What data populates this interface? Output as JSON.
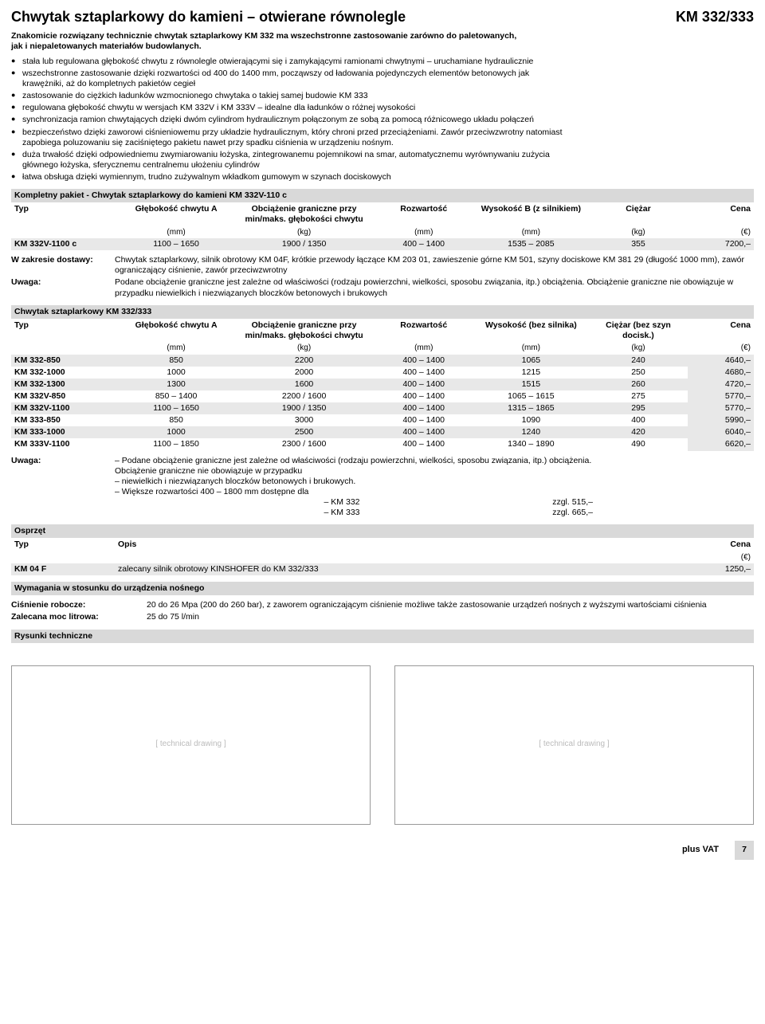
{
  "header": {
    "title": "Chwytak sztaplarkowy do kamieni – otwierane równolegle",
    "model": "KM 332/333"
  },
  "intro": "Znakomicie rozwiązany technicznie chwytak sztaplarkowy KM 332 ma wszechstronne zastosowanie zarówno do paletowanych, jak i niepaletowanych materiałów budowlanych.",
  "bullets": [
    "stała lub regulowana głębokość chwytu z równolegle otwierającymi się i zamykającymi ramionami chwytnymi – uruchamiane hydraulicznie",
    "wszechstronne zastosowanie dzięki rozwartości od 400 do 1400 mm, począwszy od ładowania pojedynczych elementów betonowych jak krawężniki, aż do kompletnych pakietów cegieł",
    "zastosowanie do ciężkich ładunków wzmocnionego chwytaka o takiej samej budowie KM 333",
    "regulowana głębokość chwytu w wersjach KM 332V i KM 333V – idealne dla ładunków o różnej wysokości",
    "synchronizacja ramion chwytających dzięki dwóm cylindrom hydraulicznym połączonym ze sobą za pomocą różnicowego układu połączeń",
    "bezpieczeństwo dzięki zaworowi ciśnieniowemu przy układzie hydraulicznym, który chroni przed przeciążeniami. Zawór przeciwzwrotny natomiast zapobiega poluzowaniu się zaciśniętego pakietu nawet przy spadku ciśnienia w urządzeniu nośnym.",
    "duża trwałość dzięki odpowiedniemu zwymiarowaniu łożyska, zintegrowanemu pojemnikowi na smar, automatycznemu wyrównywaniu zużycia głównego łożyska, sferycznemu centralnemu ułożeniu cylindrów",
    "łatwa obsługa dzięki wymiennym, trudno zużywalnym wkładkom gumowym w szynach dociskowych"
  ],
  "section1": {
    "title": "Kompletny pakiet - Chwytak sztaplarkowy do kamieni KM 332V-110 c",
    "headers": [
      "Typ",
      "Głębokość chwytu A",
      "Obciążenie graniczne przy min/maks. głębokości chwytu",
      "Rozwartość",
      "Wysokość B (z silnikiem)",
      "Ciężar",
      "Cena"
    ],
    "units": [
      "",
      "(mm)",
      "(kg)",
      "(mm)",
      "(mm)",
      "(kg)",
      "(€)"
    ],
    "rows": [
      [
        "KM 332V-1100 c",
        "1100 – 1650",
        "1900 / 1350",
        "400 – 1400",
        "1535 – 2085",
        "355",
        "7200,–"
      ]
    ]
  },
  "delivery": {
    "scope_label": "W zakresie dostawy:",
    "scope_text": "Chwytak sztaplarkowy, silnik obrotowy KM 04F, krótkie przewody łączące KM 203 01, zawieszenie górne KM 501, szyny dociskowe KM 381 29 (długość 1000 mm), zawór ograniczający ciśnienie, zawór przeciwzwrotny",
    "note_label": "Uwaga:",
    "note_text": "Podane obciążenie graniczne jest zależne od właściwości (rodzaju powierzchni, wielkości, sposobu związania, itp.) obciążenia. Obciążenie graniczne nie obowiązuje w przypadku niewielkich i niezwiązanych bloczków betonowych i brukowych"
  },
  "section2": {
    "title": "Chwytak sztaplarkowy KM 332/333",
    "headers": [
      "Typ",
      "Głębokość chwytu A",
      "Obciążenie graniczne przy min/maks. głębokości chwytu",
      "Rozwartość",
      "Wysokość (bez silnika)",
      "Ciężar (bez szyn docisk.)",
      "Cena"
    ],
    "units": [
      "",
      "(mm)",
      "(kg)",
      "(mm)",
      "(mm)",
      "(kg)",
      "(€)"
    ],
    "rows": [
      [
        "KM 332-850",
        "850",
        "2200",
        "400 – 1400",
        "1065",
        "240",
        "4640,–"
      ],
      [
        "KM 332-1000",
        "1000",
        "2000",
        "400 – 1400",
        "1215",
        "250",
        "4680,–"
      ],
      [
        "KM 332-1300",
        "1300",
        "1600",
        "400 – 1400",
        "1515",
        "260",
        "4720,–"
      ],
      [
        "KM 332V-850",
        "850 – 1400",
        "2200 / 1600",
        "400 – 1400",
        "1065 – 1615",
        "275",
        "5770,–"
      ],
      [
        "KM 332V-1100",
        "1100 – 1650",
        "1900 / 1350",
        "400 – 1400",
        "1315 – 1865",
        "295",
        "5770,–"
      ],
      [
        "KM 333-850",
        "850",
        "3000",
        "400 – 1400",
        "1090",
        "400",
        "5990,–"
      ],
      [
        "KM 333-1000",
        "1000",
        "2500",
        "400 – 1400",
        "1240",
        "420",
        "6040,–"
      ],
      [
        "KM 333V-1100",
        "1100 – 1850",
        "2300 / 1600",
        "400 – 1400",
        "1340 – 1890",
        "490",
        "6620,–"
      ]
    ]
  },
  "note2": {
    "label": "Uwaga:",
    "lines": [
      "– Podane obciążenie graniczne jest zależne od właściwości (rodzaju powierzchni, wielkości, sposobu związania, itp.) obciążenia.",
      "   Obciążenie graniczne nie obowiązuje w przypadku",
      "– niewielkich i niezwiązanych bloczków betonowych i brukowych.",
      "– Większe rozwartości 400 – 1800 mm dostępne dla"
    ],
    "extra": [
      {
        "model": "– KM 332",
        "price": "zzgl. 515,–"
      },
      {
        "model": "– KM 333",
        "price": "zzgl. 665,–"
      }
    ]
  },
  "accessories": {
    "title": "Osprzęt",
    "headers": [
      "Typ",
      "Opis",
      "Cena"
    ],
    "unit_price": "(€)",
    "rows": [
      [
        "KM 04 F",
        "zalecany silnik obrotowy KINSHOFER do KM 332/333",
        "1250,–"
      ]
    ]
  },
  "requirements": {
    "title": "Wymagania w stosunku do urządzenia nośnego",
    "rows": [
      {
        "label": "Ciśnienie robocze:",
        "value": "20 do 26 Mpa (200 do 260 bar), z zaworem ograniczającym ciśnienie możliwe także zastosowanie urządzeń nośnych z wyższymi wartościami ciśnienia"
      },
      {
        "label": "Zalecana moc litrowa:",
        "value": "25 do 75 l/min"
      }
    ]
  },
  "drawings_title": "Rysunki techniczne",
  "footer": {
    "vat": "plus VAT",
    "page": "7"
  },
  "colors": {
    "section_bg": "#d9d9d9",
    "shade_bg": "#e8e8e8"
  }
}
